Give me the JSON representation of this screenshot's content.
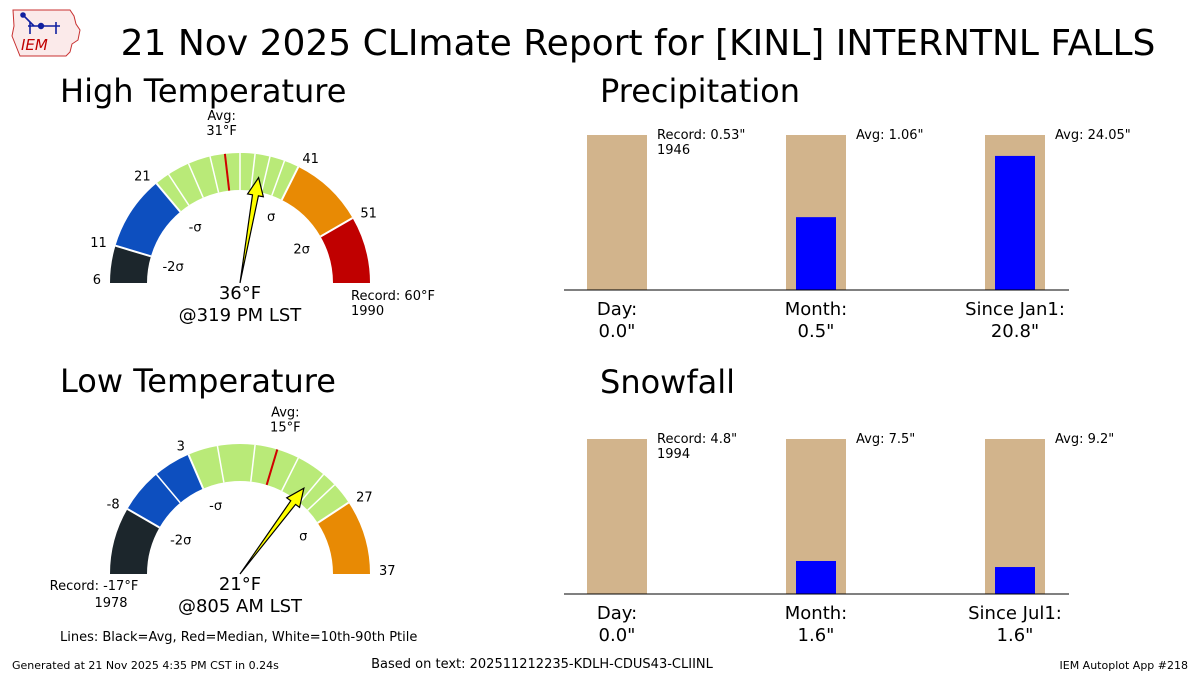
{
  "header": {
    "logo_text": "IEM",
    "title": "21 Nov 2025 CLImate Report for [KINL] INTERNTNL FALLS"
  },
  "footer": {
    "generated": "Generated at 21 Nov 2025 4:35 PM CST in 0.24s",
    "based_on": "Based on text: 202511212235-KDLH-CDUS43-CLIINL",
    "app": "IEM Autoplot App #218",
    "legend_note": "Lines: Black=Avg, Red=Median, White=10th-90th Ptile"
  },
  "colors": {
    "below_2sigma": "#1c262c",
    "below_sigma": "#0d4fbf",
    "normal": "#b9ea78",
    "above_sigma": "#e88a04",
    "above_2sigma": "#c00000",
    "needle": "#ffff00",
    "median_line": "#d00000",
    "bar_bg": "#d2b48c",
    "bar_fg": "#0000ff"
  },
  "chart_data": [
    {
      "type": "gauge",
      "title": "High Temperature",
      "min": 6,
      "max": 60,
      "ticks": [
        {
          "value": 6,
          "label": "6"
        },
        {
          "value": 11,
          "label": "11"
        },
        {
          "value": 21,
          "label": "21"
        },
        {
          "value": 41,
          "label": "41"
        },
        {
          "value": 51,
          "label": "51"
        }
      ],
      "bands": [
        {
          "from": 6,
          "to": 11,
          "color": "below_2sigma"
        },
        {
          "from": 11,
          "to": 21,
          "color": "below_sigma"
        },
        {
          "from": 21,
          "to": 41,
          "color": "normal"
        },
        {
          "from": 41,
          "to": 51,
          "color": "above_sigma"
        },
        {
          "from": 51,
          "to": 60,
          "color": "above_2sigma"
        }
      ],
      "sigma_labels": [
        {
          "value": 11,
          "label": "-2σ"
        },
        {
          "value": 21,
          "label": "-σ"
        },
        {
          "value": 41,
          "label": "σ"
        },
        {
          "value": 51,
          "label": "2σ"
        }
      ],
      "avg": 31,
      "avg_label": "Avg:",
      "avg_value_label": "31°F",
      "median": 31,
      "percentile_lines": [
        23,
        26,
        29,
        33,
        35,
        37,
        39
      ],
      "observed": 36,
      "observed_label": "36°F",
      "time_label": "@319 PM LST",
      "record_label": "Record: 60°F",
      "record_year": "1990",
      "record_side": "right"
    },
    {
      "type": "gauge",
      "title": "Low Temperature",
      "min": -17,
      "max": 37,
      "ticks": [
        {
          "value": -8,
          "label": "-8"
        },
        {
          "value": 3,
          "label": "3"
        },
        {
          "value": 27,
          "label": "27"
        },
        {
          "value": 37,
          "label": "37"
        }
      ],
      "bands": [
        {
          "from": -17,
          "to": -8,
          "color": "below_2sigma"
        },
        {
          "from": -8,
          "to": 3,
          "color": "below_sigma"
        },
        {
          "from": 3,
          "to": 27,
          "color": "normal"
        },
        {
          "from": 27,
          "to": 37,
          "color": "above_sigma"
        }
      ],
      "sigma_labels": [
        {
          "value": -8,
          "label": "-2σ"
        },
        {
          "value": 3,
          "label": "-σ"
        },
        {
          "value": 27,
          "label": "σ"
        }
      ],
      "avg": 15,
      "avg_label": "Avg:",
      "avg_value_label": "15°F",
      "median": 15,
      "percentile_lines": [
        -2,
        7,
        12,
        18,
        22,
        24
      ],
      "observed": 21,
      "observed_label": "21°F",
      "time_label": "@805 AM LST",
      "record_label": "Record: -17°F",
      "record_year": "1978",
      "record_side": "left"
    },
    {
      "type": "bar",
      "title": "Precipitation",
      "categories": [
        "Day:",
        "Month:",
        "Since Jan1:"
      ],
      "value_labels": [
        "0.0\"",
        "0.5\"",
        "20.8\""
      ],
      "values": [
        0.0,
        0.5,
        20.8
      ],
      "reference": [
        0.53,
        1.06,
        24.05
      ],
      "fill_fraction": [
        0.0,
        0.47,
        0.865
      ],
      "annotations": [
        "Record: 0.53\"",
        "Avg: 1.06\"",
        "Avg: 24.05\""
      ],
      "annotation_sub": [
        "1946",
        "",
        ""
      ]
    },
    {
      "type": "bar",
      "title": "Snowfall",
      "categories": [
        "Day:",
        "Month:",
        "Since Jul1:"
      ],
      "value_labels": [
        "0.0\"",
        "1.6\"",
        "1.6\""
      ],
      "values": [
        0.0,
        1.6,
        1.6
      ],
      "reference": [
        4.8,
        7.5,
        9.2
      ],
      "fill_fraction": [
        0.0,
        0.213,
        0.174
      ],
      "annotations": [
        "Record: 4.8\"",
        "Avg: 7.5\"",
        "Avg: 9.2\""
      ],
      "annotation_sub": [
        "1994",
        "",
        ""
      ]
    }
  ]
}
